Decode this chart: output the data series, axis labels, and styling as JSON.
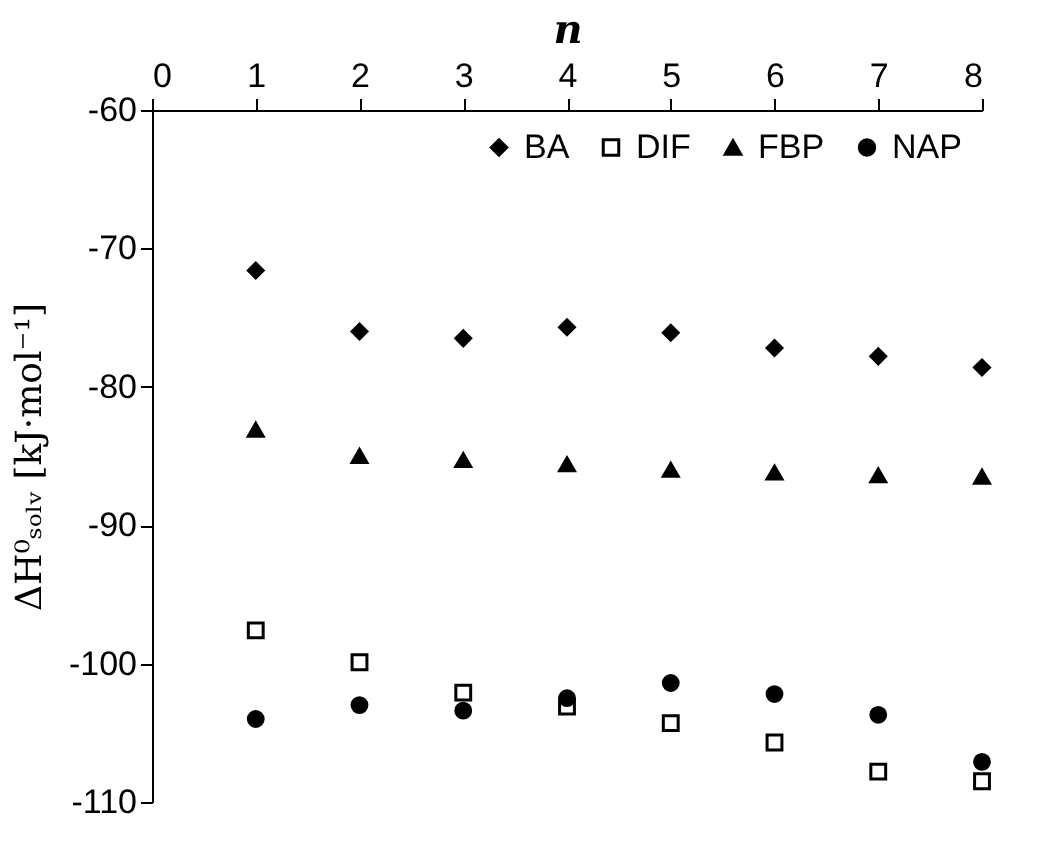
{
  "chart_data": {
    "type": "scatter",
    "xlabel": "n",
    "ylabel": "ΔH⁰ₛₒₗᵥ [kJ·mol⁻¹]",
    "x": [
      1,
      2,
      3,
      4,
      5,
      6,
      7,
      8
    ],
    "xlim": [
      0,
      8
    ],
    "xticks": [
      0,
      1,
      2,
      3,
      4,
      5,
      6,
      7,
      8
    ],
    "ylim": [
      -110,
      -60
    ],
    "yticks": [
      -110,
      -100,
      -90,
      -80,
      -70,
      -60
    ],
    "grid": false,
    "legend": "top right",
    "series": [
      {
        "name": "BA",
        "color": "#000000",
        "marker": "diamond",
        "values": [
          -71.6,
          -76.0,
          -76.5,
          -75.7,
          -76.1,
          -77.2,
          -77.8,
          -78.6
        ]
      },
      {
        "name": "DIF",
        "color": "#000000",
        "marker": "square",
        "values": [
          -97.6,
          -99.9,
          -102.1,
          -103.1,
          -104.3,
          -105.7,
          -107.8,
          -108.5
        ]
      },
      {
        "name": "FBP",
        "color": "#000000",
        "marker": "triangle",
        "values": [
          -83.1,
          -85.0,
          -85.3,
          -85.6,
          -86.0,
          -86.2,
          -86.4,
          -86.5
        ]
      },
      {
        "name": "NAP",
        "color": "#000000",
        "marker": "circle",
        "values": [
          -104.0,
          -103.0,
          -103.4,
          -102.5,
          -101.4,
          -102.2,
          -103.7,
          -107.1
        ]
      }
    ]
  }
}
